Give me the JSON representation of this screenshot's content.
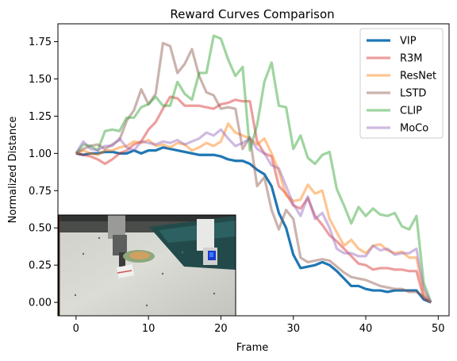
{
  "chart_data": {
    "type": "line",
    "title": "Reward Curves Comparison",
    "xlabel": "Frame",
    "ylabel": "Normalized Distance",
    "xlim": [
      -2.5,
      51.5
    ],
    "ylim": [
      -0.09,
      1.87
    ],
    "xticks": [
      0,
      10,
      20,
      30,
      40,
      50
    ],
    "yticks": [
      0.0,
      0.25,
      0.5,
      0.75,
      1.0,
      1.25,
      1.5,
      1.75
    ],
    "xtick_labels": [
      "0",
      "10",
      "20",
      "30",
      "40",
      "50"
    ],
    "ytick_labels": [
      "0.00",
      "0.25",
      "0.50",
      "0.75",
      "1.00",
      "1.25",
      "1.50",
      "1.75"
    ],
    "grid": false,
    "legend_position": "top-right",
    "inset": "photo of a robot arm pushing a small object on a white table (bottom-left)",
    "series": [
      {
        "name": "VIP",
        "color": "#1f77b4",
        "opacity": 1.0,
        "width": 3.2,
        "values": [
          1.0,
          0.99,
          1.0,
          1.0,
          1.01,
          1.01,
          1.0,
          1.0,
          1.02,
          1.0,
          1.02,
          1.02,
          1.04,
          1.03,
          1.02,
          1.01,
          1.0,
          0.99,
          0.99,
          0.99,
          0.98,
          0.96,
          0.95,
          0.95,
          0.93,
          0.89,
          0.86,
          0.78,
          0.6,
          0.5,
          0.32,
          0.23,
          0.24,
          0.25,
          0.27,
          0.25,
          0.21,
          0.16,
          0.11,
          0.11,
          0.09,
          0.08,
          0.08,
          0.07,
          0.08,
          0.08,
          0.08,
          0.08,
          0.02,
          0.0
        ]
      },
      {
        "name": "R3M",
        "color": "#d62728",
        "opacity": 0.45,
        "width": 3.2,
        "values": [
          1.0,
          0.99,
          0.98,
          0.96,
          0.93,
          0.96,
          1.0,
          1.02,
          1.06,
          1.08,
          1.16,
          1.21,
          1.3,
          1.38,
          1.37,
          1.32,
          1.32,
          1.32,
          1.31,
          1.3,
          1.33,
          1.34,
          1.36,
          1.35,
          1.35,
          1.08,
          1.0,
          0.98,
          0.78,
          0.73,
          0.65,
          0.63,
          0.7,
          0.58,
          0.52,
          0.45,
          0.41,
          0.36,
          0.31,
          0.26,
          0.25,
          0.22,
          0.23,
          0.23,
          0.22,
          0.22,
          0.21,
          0.21,
          0.03,
          0.0
        ]
      },
      {
        "name": "ResNet",
        "color": "#ff7f0e",
        "opacity": 0.45,
        "width": 3.2,
        "values": [
          1.0,
          1.02,
          1.0,
          0.99,
          1.02,
          1.02,
          1.04,
          1.05,
          1.08,
          1.07,
          1.09,
          1.05,
          1.06,
          1.04,
          1.07,
          1.06,
          1.02,
          1.04,
          1.07,
          1.05,
          1.08,
          1.2,
          1.14,
          1.12,
          1.1,
          1.06,
          1.1,
          1.0,
          0.88,
          0.72,
          0.68,
          0.69,
          0.79,
          0.73,
          0.75,
          0.56,
          0.47,
          0.38,
          0.42,
          0.36,
          0.33,
          0.38,
          0.39,
          0.35,
          0.33,
          0.34,
          0.3,
          0.3,
          0.06,
          0.0
        ]
      },
      {
        "name": "LSTD",
        "color": "#8c564b",
        "opacity": 0.45,
        "width": 3.2,
        "values": [
          1.0,
          1.03,
          1.05,
          1.06,
          1.03,
          1.06,
          1.09,
          1.22,
          1.29,
          1.43,
          1.33,
          1.4,
          1.74,
          1.72,
          1.54,
          1.6,
          1.7,
          1.52,
          1.41,
          1.39,
          1.3,
          1.31,
          1.3,
          1.03,
          1.11,
          0.78,
          0.84,
          0.62,
          0.49,
          0.62,
          0.56,
          0.3,
          0.27,
          0.28,
          0.29,
          0.28,
          0.24,
          0.2,
          0.17,
          0.16,
          0.15,
          0.13,
          0.11,
          0.1,
          0.09,
          0.09,
          0.07,
          0.07,
          0.04,
          0.0
        ]
      },
      {
        "name": "CLIP",
        "color": "#2ca02c",
        "opacity": 0.45,
        "width": 3.2,
        "values": [
          1.0,
          1.06,
          1.05,
          1.02,
          1.15,
          1.16,
          1.15,
          1.24,
          1.24,
          1.31,
          1.33,
          1.38,
          1.32,
          1.32,
          1.48,
          1.4,
          1.36,
          1.54,
          1.54,
          1.79,
          1.77,
          1.63,
          1.52,
          1.58,
          1.02,
          1.19,
          1.48,
          1.61,
          1.32,
          1.31,
          1.03,
          1.12,
          0.97,
          0.93,
          0.99,
          1.01,
          0.76,
          0.65,
          0.53,
          0.64,
          0.58,
          0.63,
          0.59,
          0.58,
          0.6,
          0.51,
          0.49,
          0.58,
          0.13,
          0.0
        ]
      },
      {
        "name": "MoCo",
        "color": "#9467bd",
        "opacity": 0.45,
        "width": 3.2,
        "values": [
          1.0,
          1.08,
          1.03,
          1.02,
          1.05,
          1.05,
          1.1,
          1.04,
          1.02,
          1.08,
          1.07,
          1.06,
          1.08,
          1.07,
          1.09,
          1.06,
          1.08,
          1.1,
          1.14,
          1.12,
          1.16,
          1.1,
          1.05,
          1.07,
          1.1,
          1.03,
          1.0,
          0.92,
          0.9,
          0.78,
          0.66,
          0.58,
          0.71,
          0.56,
          0.6,
          0.5,
          0.36,
          0.33,
          0.33,
          0.31,
          0.31,
          0.38,
          0.35,
          0.36,
          0.32,
          0.33,
          0.33,
          0.36,
          0.09,
          0.0
        ]
      }
    ]
  }
}
